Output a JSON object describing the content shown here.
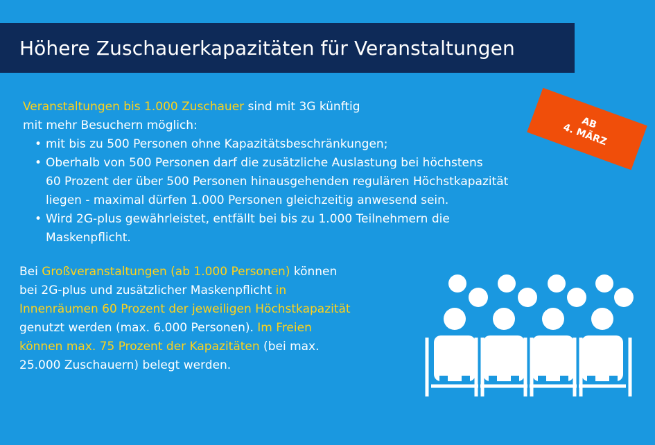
{
  "title": "Höhere Zuschauerkapazitäten für Veranstaltungen",
  "badge": {
    "line1": "AB",
    "line2": "4. MÄRZ"
  },
  "intro": {
    "highlight": "Veranstaltungen bis 1.000 Zuschauer",
    "rest1": " sind mit 3G künftig",
    "line2": "mit mehr Besuchern möglich:"
  },
  "bullets": {
    "b1": "mit bis zu 500 Personen ohne Kapazitätsbeschränkungen;",
    "b2_l1": "Oberhalb von 500 Personen darf die zusätzliche Auslastung bei höchstens",
    "b2_l2": "60 Prozent der über 500 Personen hinausgehenden regulären Höchstkapazität",
    "b2_l3": "liegen - maximal dürfen 1.000 Personen gleichzeitig anwesend sein.",
    "b3_l1": "Wird 2G-plus gewährleistet, entfällt bei bis zu 1.000 Teilnehmern die",
    "b3_l2": "Maskenpflicht."
  },
  "section2": {
    "l1_pre": "Bei ",
    "l1_hl": "Großveranstaltungen (ab 1.000 Personen)",
    "l1_post": " können",
    "l2_pre": "bei 2G-plus und zusätzlicher Maskenpflicht ",
    "l2_hl": "in",
    "l3_hl": "Innenräumen 60 Prozent der jeweiligen Höchstkapazität",
    "l4_pre": "genutzt werden (max. 6.000 Personen). ",
    "l4_hl": "Im Freien",
    "l5_hl": "können max. 75 Prozent der Kapazitäten",
    "l5_post": " (bei max.",
    "l6": "25.000 Zuschauern) belegt werden."
  },
  "colors": {
    "background": "#1a98e0",
    "title_bar": "#0e2a58",
    "highlight": "#ffd21a",
    "badge": "#f04e0a"
  },
  "icons": [
    "audience-icon"
  ]
}
